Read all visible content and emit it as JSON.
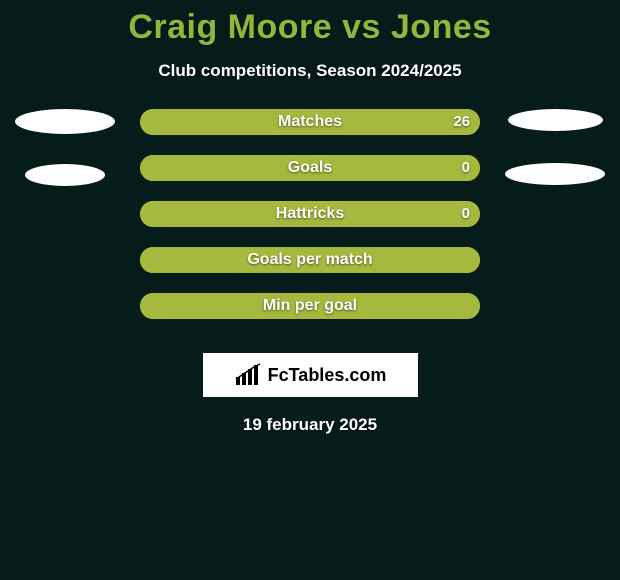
{
  "title": {
    "text": "Craig Moore vs Jones",
    "color": "#92b53b",
    "fontsize": 34,
    "fontweight": 800
  },
  "subtitle": {
    "text": "Club competitions, Season 2024/2025",
    "color": "#ffffff",
    "fontsize": 17,
    "fontweight": 700
  },
  "background_color": "#061c1a",
  "bar_style": {
    "height": 26,
    "gap": 20,
    "border_radius": 13,
    "left_color": "#ffffff",
    "right_color": "#a5b93e",
    "label_fontsize": 16,
    "value_fontsize": 15,
    "text_color": "#ffffff"
  },
  "left_ellipses": [
    {
      "w": 100,
      "h": 25
    },
    {
      "w": 80,
      "h": 22
    }
  ],
  "right_ellipses": [
    {
      "w": 95,
      "h": 22
    },
    {
      "w": 100,
      "h": 22
    }
  ],
  "bars": [
    {
      "label": "Matches",
      "left_pct": 0,
      "right_pct": 100,
      "left_value": "",
      "right_value": "26"
    },
    {
      "label": "Goals",
      "left_pct": 0,
      "right_pct": 100,
      "left_value": "",
      "right_value": "0"
    },
    {
      "label": "Hattricks",
      "left_pct": 0,
      "right_pct": 100,
      "left_value": "",
      "right_value": "0"
    },
    {
      "label": "Goals per match",
      "left_pct": 0,
      "right_pct": 100,
      "left_value": "",
      "right_value": ""
    },
    {
      "label": "Min per goal",
      "left_pct": 0,
      "right_pct": 100,
      "left_value": "",
      "right_value": ""
    }
  ],
  "branding": {
    "text": "FcTables.com",
    "bg": "#ffffff",
    "text_color": "#000000",
    "icon_color": "#000000",
    "fontsize": 18
  },
  "date_line": {
    "text": "19 february 2025",
    "color": "#ffffff",
    "fontsize": 17
  }
}
